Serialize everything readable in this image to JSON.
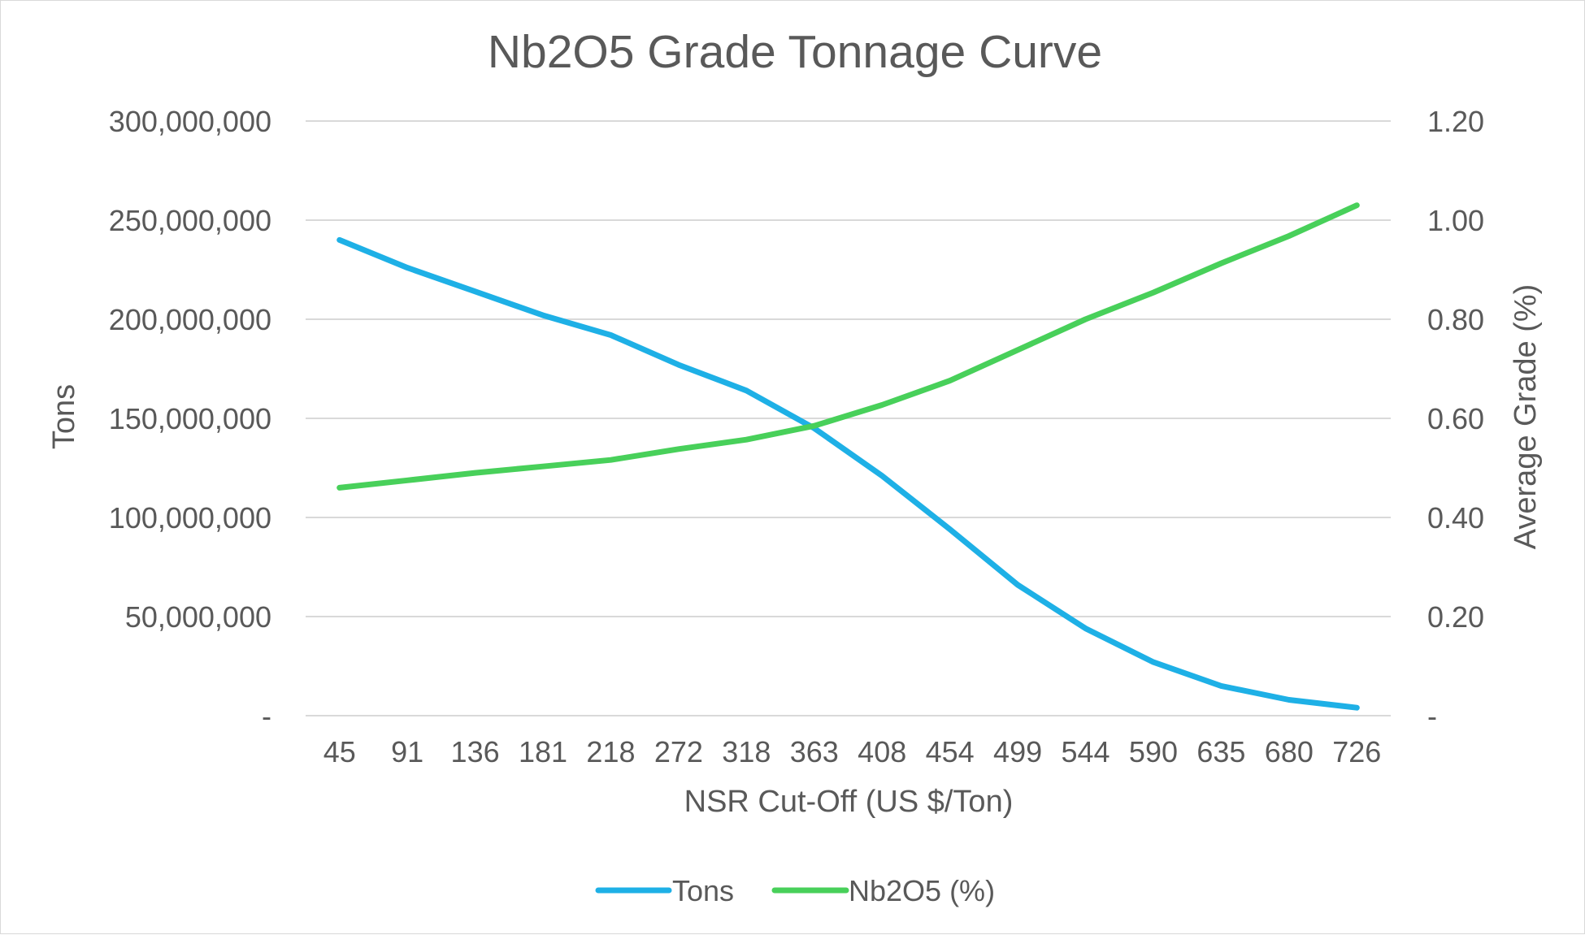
{
  "chart_data": {
    "type": "line",
    "title": "Nb2O5 Grade Tonnage Curve",
    "xlabel": "NSR Cut-Off (US $/Ton)",
    "ylabel": "Tons",
    "y2label": "Average Grade (%)",
    "categories": [
      "45",
      "91",
      "136",
      "181",
      "218",
      "272",
      "318",
      "363",
      "408",
      "454",
      "499",
      "544",
      "590",
      "635",
      "680",
      "726"
    ],
    "ylim": [
      0,
      300000000
    ],
    "y2lim": [
      0,
      1.2
    ],
    "y_ticks": [
      "-",
      "50,000,000",
      "100,000,000",
      "150,000,000",
      "200,000,000",
      "250,000,000",
      "300,000,000"
    ],
    "y2_ticks": [
      "-",
      "0.20",
      "0.40",
      "0.60",
      "0.80",
      "1.00",
      "1.20"
    ],
    "grid": true,
    "legend_position": "bottom",
    "series": [
      {
        "name": "Tons",
        "axis": "left",
        "color": "#1eb0e6",
        "values": [
          240000000,
          226000000,
          214000000,
          202000000,
          192000000,
          177000000,
          164000000,
          145000000,
          121000000,
          94000000,
          66000000,
          44000000,
          27000000,
          15000000,
          8000000,
          4000000
        ]
      },
      {
        "name": "Nb2O5 (%)",
        "axis": "right",
        "color": "#48d05a",
        "values": [
          0.46,
          0.475,
          0.49,
          0.503,
          0.516,
          0.538,
          0.557,
          0.585,
          0.627,
          0.676,
          0.738,
          0.8,
          0.854,
          0.913,
          0.968,
          1.03
        ]
      }
    ]
  }
}
